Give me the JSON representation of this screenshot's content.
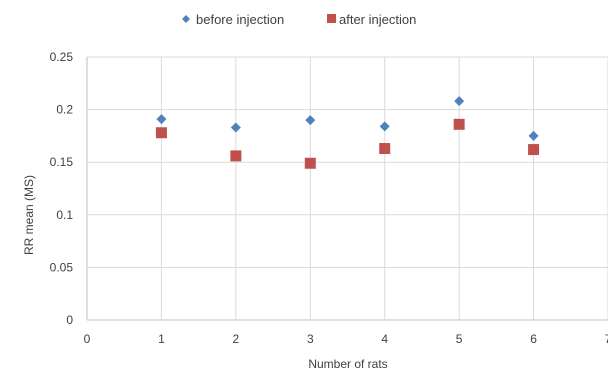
{
  "chart_data": {
    "type": "scatter",
    "title": "",
    "xlabel": "Number of rats",
    "ylabel": "RR mean (MS)",
    "xlim": [
      0,
      7
    ],
    "ylim": [
      0,
      0.25
    ],
    "x_ticks": [
      "0",
      "1",
      "2",
      "3",
      "4",
      "5",
      "6",
      "7"
    ],
    "y_ticks": [
      "0",
      "0.05",
      "0.1",
      "0.15",
      "0.2",
      "0.25"
    ],
    "grid": "both",
    "legend_position": "top",
    "series": [
      {
        "name": "before injection",
        "marker": "diamond",
        "color": "#4f81bd",
        "x": [
          1,
          2,
          3,
          4,
          5,
          6
        ],
        "y": [
          0.191,
          0.183,
          0.19,
          0.184,
          0.208,
          0.175
        ]
      },
      {
        "name": "after injection",
        "marker": "square",
        "color": "#c0504d",
        "x": [
          1,
          2,
          3,
          4,
          5,
          6
        ],
        "y": [
          0.178,
          0.156,
          0.149,
          0.163,
          0.186,
          0.162
        ]
      }
    ]
  }
}
